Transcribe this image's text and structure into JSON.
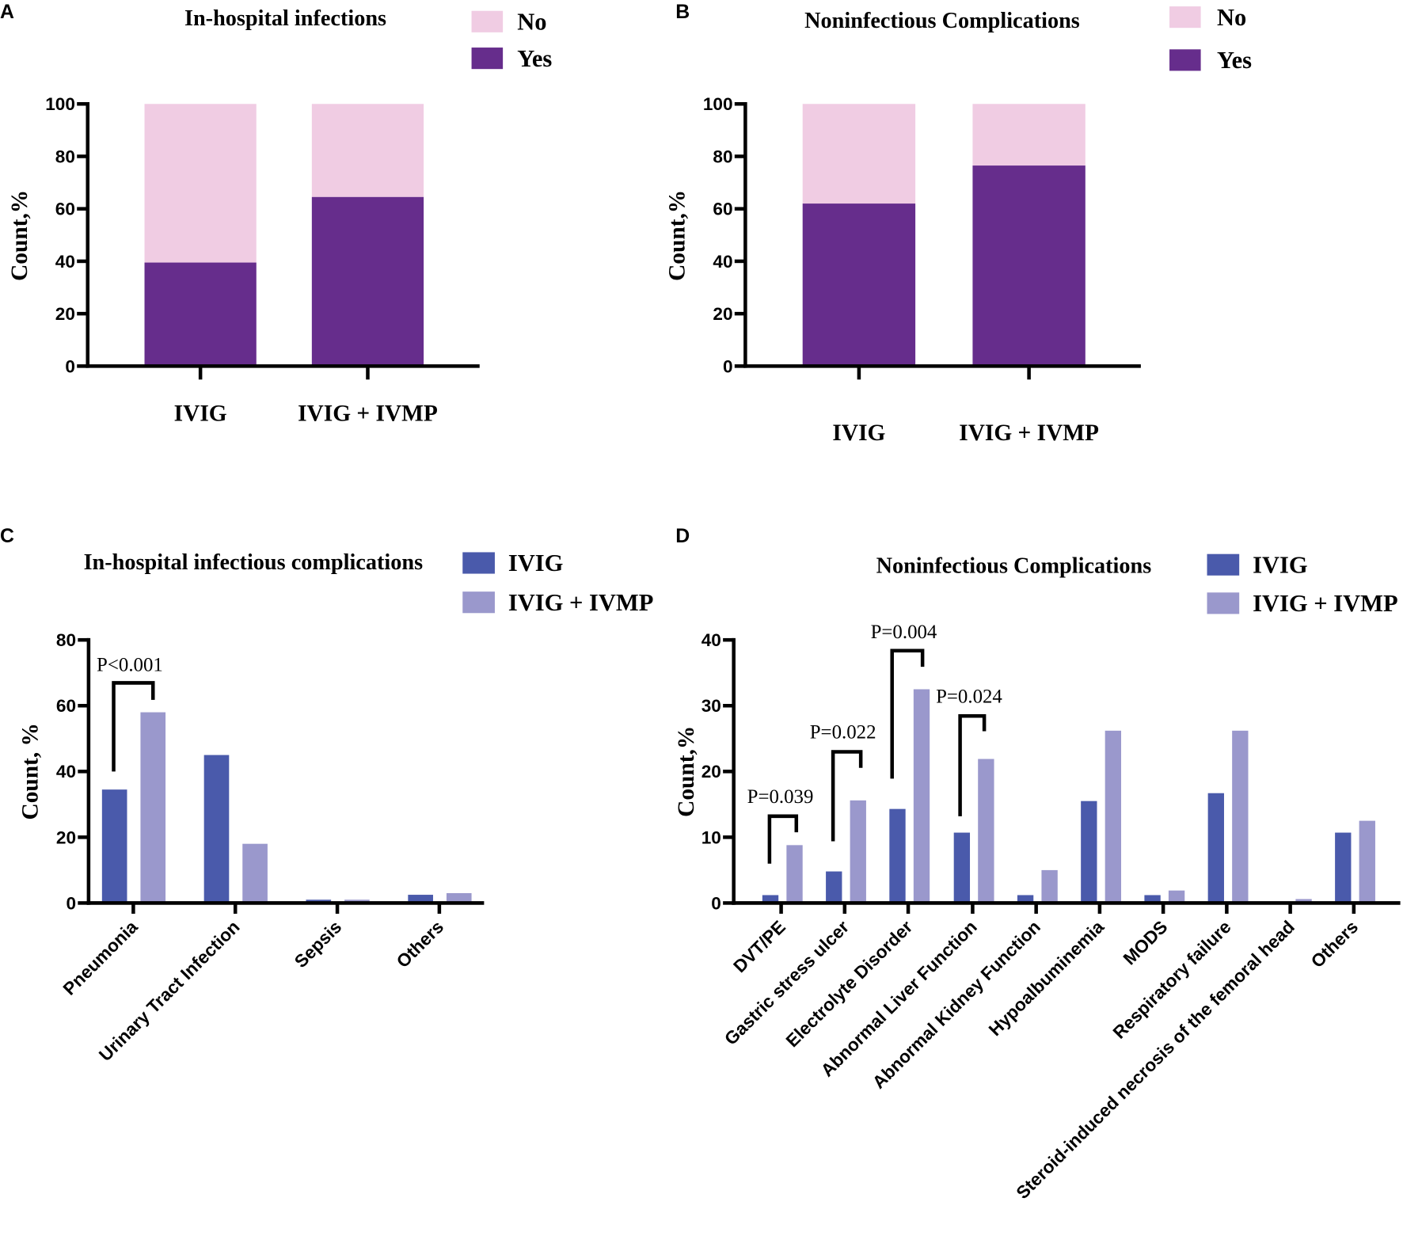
{
  "colors": {
    "yes": "#662d8c",
    "no": "#f0cce3",
    "ivig": "#4a5aab",
    "ivmp": "#9a98cc"
  },
  "chart_data": [
    {
      "panel": "A",
      "type": "bar",
      "stacked": true,
      "title": "In-hospital infections",
      "ylabel": "Count,%",
      "ylim": [
        0,
        100
      ],
      "yticks": [
        0,
        20,
        40,
        60,
        80,
        100
      ],
      "categories": [
        "IVIG",
        "IVIG + IVMP"
      ],
      "series": [
        {
          "name": "Yes",
          "values": [
            39.5,
            64.5
          ]
        },
        {
          "name": "No",
          "values": [
            60.5,
            35.5
          ]
        }
      ],
      "legend": [
        "No",
        "Yes"
      ],
      "legend_position": "top-right"
    },
    {
      "panel": "B",
      "type": "bar",
      "stacked": true,
      "title": "Noninfectious Complications",
      "ylabel": "Count,%",
      "ylim": [
        0,
        100
      ],
      "yticks": [
        0,
        20,
        40,
        60,
        80,
        100
      ],
      "categories": [
        "IVIG",
        "IVIG + IVMP"
      ],
      "series": [
        {
          "name": "Yes",
          "values": [
            62,
            76.5
          ]
        },
        {
          "name": "No",
          "values": [
            38,
            23.5
          ]
        }
      ],
      "legend": [
        "No",
        "Yes"
      ],
      "legend_position": "top-right"
    },
    {
      "panel": "C",
      "type": "bar",
      "title": "In-hospital infectious complications",
      "ylabel": "Count, %",
      "ylim": [
        0,
        80
      ],
      "yticks": [
        0,
        20,
        40,
        60,
        80
      ],
      "categories": [
        "Pneumonia",
        "Urinary Tract Infection",
        "Sepsis",
        "Others"
      ],
      "series": [
        {
          "name": "IVIG",
          "values": [
            34.5,
            45,
            1,
            2.5
          ]
        },
        {
          "name": "IVIG + IVMP",
          "values": [
            58,
            18,
            1,
            3
          ]
        }
      ],
      "annotations": [
        {
          "category": 0,
          "text": "P<0.001"
        }
      ],
      "legend_position": "top-right"
    },
    {
      "panel": "D",
      "type": "bar",
      "title": "Noninfectious Complications",
      "ylabel": "Count,%",
      "ylim": [
        0,
        40
      ],
      "yticks": [
        0,
        10,
        20,
        30,
        40
      ],
      "categories": [
        "DVT/PE",
        "Gastric stress ulcer",
        "Electrolyte Disorder",
        "Abnormal Liver Function",
        "Abnormal Kidney Function",
        "Hypoalbuminemia",
        "MODS",
        "Respiratory failure",
        "Steroid-induced necrosis of the femoral head",
        "Others"
      ],
      "series": [
        {
          "name": "IVIG",
          "values": [
            1.2,
            4.8,
            14.3,
            10.7,
            1.2,
            15.5,
            1.2,
            16.7,
            0,
            10.7
          ]
        },
        {
          "name": "IVIG + IVMP",
          "values": [
            8.8,
            15.6,
            32.5,
            21.9,
            5,
            26.2,
            1.9,
            26.2,
            0.6,
            12.5
          ]
        }
      ],
      "annotations": [
        {
          "category": 0,
          "text": "P=0.039"
        },
        {
          "category": 1,
          "text": "P=0.022"
        },
        {
          "category": 2,
          "text": "P=0.004"
        },
        {
          "category": 3,
          "text": "P=0.024"
        }
      ],
      "legend_position": "top-right"
    }
  ]
}
